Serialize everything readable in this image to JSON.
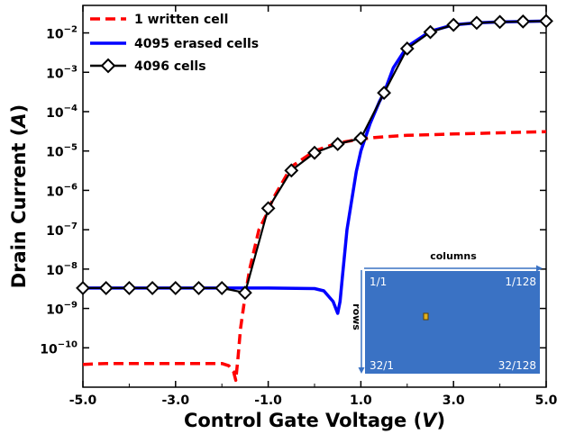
{
  "chart_data": {
    "type": "line",
    "title": "",
    "xlabel_main": "Control Gate Voltage (",
    "xlabel_unit": "V",
    "xlabel_close": ")",
    "ylabel_main": "Drain Current (",
    "ylabel_unit": "A",
    "ylabel_close": ")",
    "xlim": [
      -5.0,
      5.0
    ],
    "ylim": [
      1e-11,
      0.05
    ],
    "y_scale": "log",
    "grid": false,
    "legend_position": "top-left",
    "x_ticks": [
      -5.0,
      -3.0,
      -1.0,
      1.0,
      3.0,
      5.0
    ],
    "x_tick_labels": [
      "-5.0",
      "-3.0",
      "-1.0",
      "1.0",
      "3.0",
      "5.0"
    ],
    "y_ticks": [
      {
        "value": 1e-10,
        "base": "10",
        "exp": "−10"
      },
      {
        "value": 1e-09,
        "base": "10",
        "exp": "−9"
      },
      {
        "value": 1e-08,
        "base": "10",
        "exp": "−8"
      },
      {
        "value": 1e-07,
        "base": "10",
        "exp": "−7"
      },
      {
        "value": 1e-06,
        "base": "10",
        "exp": "−6"
      },
      {
        "value": 1e-05,
        "base": "10",
        "exp": "−5"
      },
      {
        "value": 0.0001,
        "base": "10",
        "exp": "−4"
      },
      {
        "value": 0.001,
        "base": "10",
        "exp": "−3"
      },
      {
        "value": 0.01,
        "base": "10",
        "exp": "−2"
      }
    ],
    "series": [
      {
        "name": "1 written cell",
        "color": "#ff0000",
        "style": "dashed",
        "x": [
          -5.0,
          -4.5,
          -4.0,
          -3.5,
          -3.0,
          -2.5,
          -2.0,
          -1.85,
          -1.75,
          -1.7,
          -1.65,
          -1.6,
          -1.5,
          -1.4,
          -1.2,
          -1.0,
          -0.9,
          -0.5,
          0.0,
          0.5,
          1.0,
          1.3,
          1.5,
          2.0,
          2.5,
          3.0,
          3.5,
          4.0,
          4.5,
          5.0
        ],
        "y": [
          3.8e-11,
          4e-11,
          4e-11,
          4e-11,
          4e-11,
          4e-11,
          4e-11,
          3.5e-11,
          2.5e-11,
          1.5e-11,
          6e-11,
          3e-10,
          2e-09,
          1e-08,
          1e-07,
          3e-07,
          6e-07,
          4e-06,
          1e-05,
          1.6e-05,
          2e-05,
          2.2e-05,
          2.3e-05,
          2.5e-05,
          2.6e-05,
          2.7e-05,
          2.8e-05,
          2.9e-05,
          3e-05,
          3.1e-05
        ]
      },
      {
        "name": "4095 erased cells",
        "color": "#0000ff",
        "style": "solid",
        "x": [
          -5.0,
          -4.0,
          -3.0,
          -2.0,
          -1.0,
          0.0,
          0.2,
          0.4,
          0.5,
          0.55,
          0.6,
          0.7,
          0.9,
          1.0,
          1.2,
          1.4,
          1.5,
          1.7,
          2.0,
          2.5,
          3.0,
          3.5,
          4.0,
          4.5,
          5.0
        ],
        "y": [
          3.3e-09,
          3.3e-09,
          3.3e-09,
          3.3e-09,
          3.3e-09,
          3.2e-09,
          2.8e-09,
          1.5e-09,
          7.5e-10,
          1.5e-09,
          6e-09,
          1e-07,
          3e-06,
          1e-05,
          5e-05,
          0.00018,
          0.0003,
          0.0013,
          0.0045,
          0.011,
          0.016,
          0.018,
          0.019,
          0.0195,
          0.02
        ]
      },
      {
        "name": "4096 cells",
        "color": "#000000",
        "style": "solid-markers",
        "marker": "diamond",
        "x": [
          -5.0,
          -4.5,
          -4.0,
          -3.5,
          -3.0,
          -2.5,
          -2.0,
          -1.5,
          -1.0,
          -0.5,
          0.0,
          0.5,
          1.0,
          1.5,
          2.0,
          2.5,
          3.0,
          3.5,
          4.0,
          4.5,
          5.0
        ],
        "y": [
          3.3e-09,
          3.3e-09,
          3.3e-09,
          3.3e-09,
          3.3e-09,
          3.3e-09,
          3.3e-09,
          2.5e-09,
          3.5e-07,
          3.2e-06,
          9e-06,
          1.5e-05,
          2.1e-05,
          0.0003,
          0.004,
          0.0105,
          0.016,
          0.018,
          0.019,
          0.0195,
          0.02
        ]
      }
    ],
    "inset": {
      "columns_label": "columns",
      "rows_label": "rows",
      "top_left": "1/1",
      "top_right": "1/128",
      "bottom_left": "32/1",
      "bottom_right": "32/128",
      "background_color": "#3a72c4",
      "cell_color": "#e0b020"
    }
  }
}
